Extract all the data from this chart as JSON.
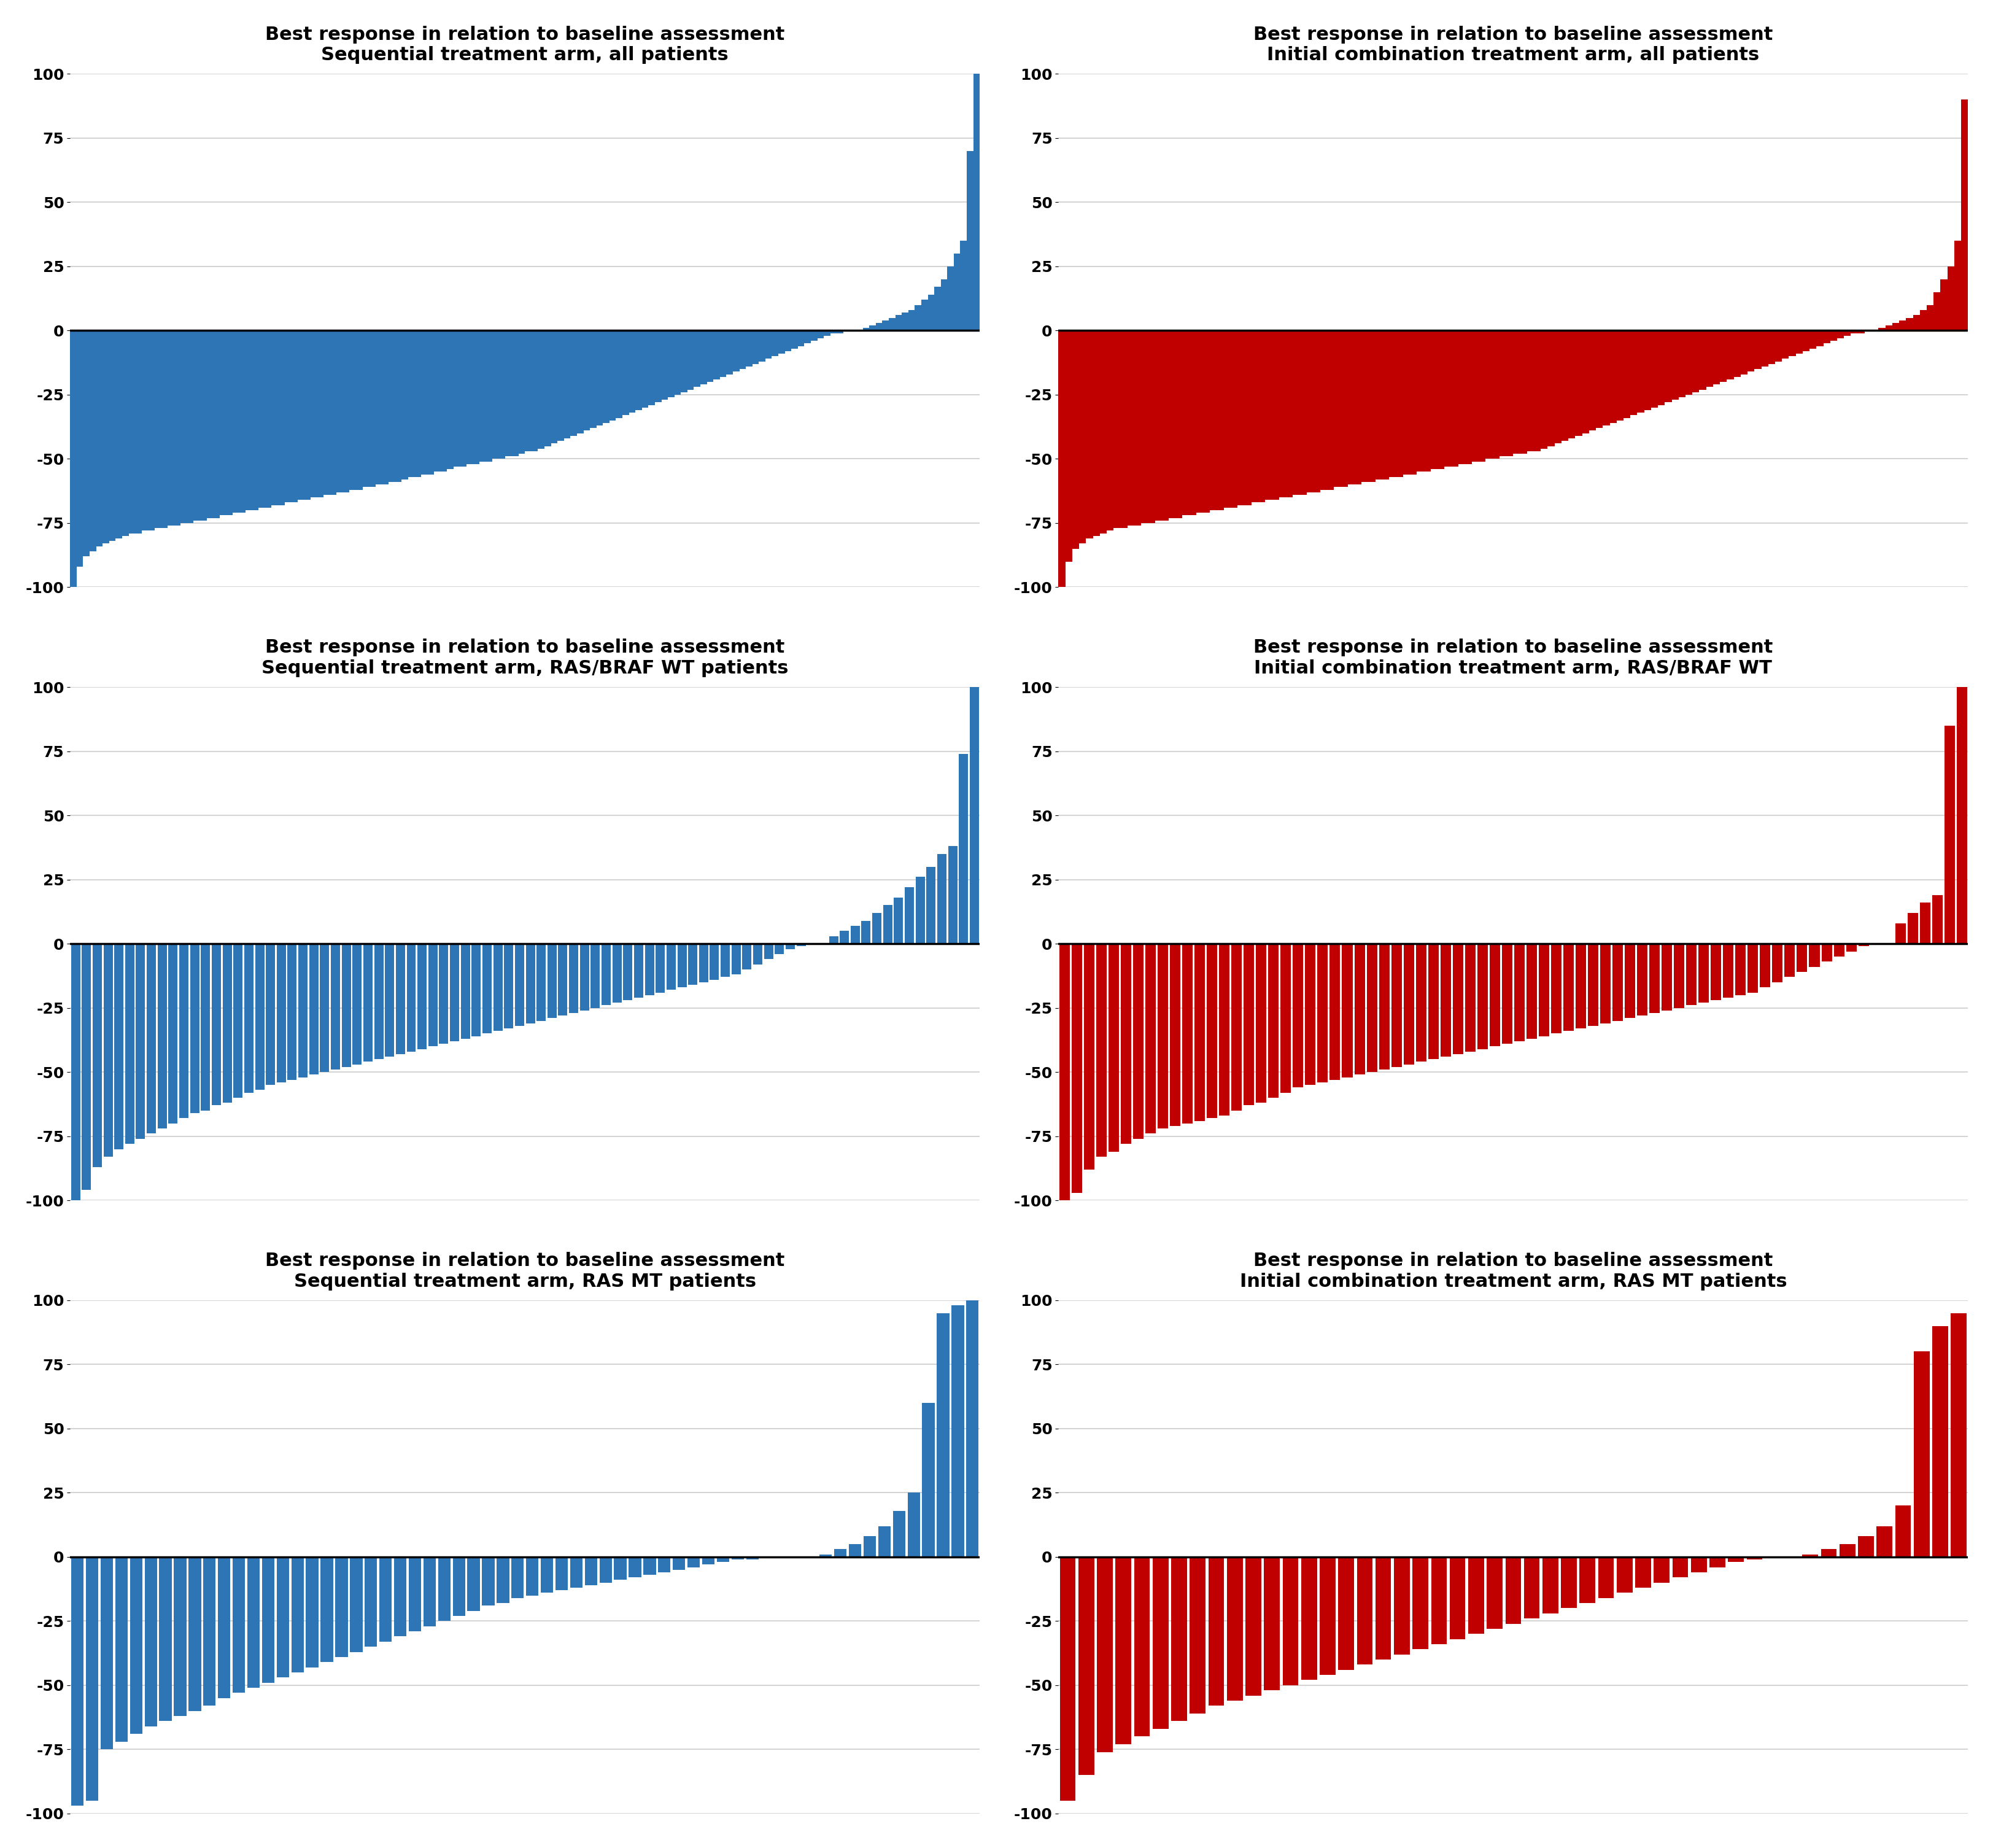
{
  "titles": [
    [
      "Best response in relation to baseline assessment",
      "Sequential treatment arm, all patients"
    ],
    [
      "Best response in relation to baseline assessment",
      "Initial combination treatment arm, all patients"
    ],
    [
      "Best response in relation to baseline assessment",
      "Sequential treatment arm, RAS/BRAF WT patients"
    ],
    [
      "Best response in relation to baseline assessment",
      "Initial combination treatment arm, RAS/BRAF WT"
    ],
    [
      "Best response in relation to baseline assessment",
      "Sequential treatment arm, RAS MT patients"
    ],
    [
      "Best response in relation to baseline assessment",
      "Initial combination treatment arm, RAS MT patients"
    ]
  ],
  "colors": [
    "#2E75B6",
    "#C00000",
    "#2E75B6",
    "#C00000",
    "#2E75B6",
    "#C00000"
  ],
  "ylim": [
    -100,
    100
  ],
  "yticks": [
    -100,
    -75,
    -50,
    -25,
    0,
    25,
    50,
    75,
    100
  ],
  "background_color": "#FFFFFF",
  "title_fontsize": 22,
  "tick_fontsize": 18,
  "grid_color": "#CCCCCC",
  "bar_width": [
    1.0,
    1.0,
    0.85,
    0.85,
    0.85,
    0.85
  ],
  "data": [
    [
      -100,
      -92,
      -88,
      -86,
      -84,
      -83,
      -82,
      -81,
      -80,
      -79,
      -79,
      -78,
      -78,
      -77,
      -77,
      -76,
      -76,
      -75,
      -75,
      -74,
      -74,
      -73,
      -73,
      -72,
      -72,
      -71,
      -71,
      -70,
      -70,
      -69,
      -69,
      -68,
      -68,
      -67,
      -67,
      -66,
      -66,
      -65,
      -65,
      -64,
      -64,
      -63,
      -63,
      -62,
      -62,
      -61,
      -61,
      -60,
      -60,
      -59,
      -59,
      -58,
      -57,
      -57,
      -56,
      -56,
      -55,
      -55,
      -54,
      -53,
      -53,
      -52,
      -52,
      -51,
      -51,
      -50,
      -50,
      -49,
      -49,
      -48,
      -47,
      -47,
      -46,
      -45,
      -44,
      -43,
      -42,
      -41,
      -40,
      -39,
      -38,
      -37,
      -36,
      -35,
      -34,
      -33,
      -32,
      -31,
      -30,
      -29,
      -28,
      -27,
      -26,
      -25,
      -24,
      -23,
      -22,
      -21,
      -20,
      -19,
      -18,
      -17,
      -16,
      -15,
      -14,
      -13,
      -12,
      -11,
      -10,
      -9,
      -8,
      -7,
      -6,
      -5,
      -4,
      -3,
      -2,
      -1,
      -1,
      0,
      0,
      0,
      1,
      2,
      3,
      4,
      5,
      6,
      7,
      8,
      10,
      12,
      14,
      17,
      20,
      25,
      30,
      35,
      70,
      100
    ],
    [
      -100,
      -90,
      -85,
      -83,
      -81,
      -80,
      -79,
      -78,
      -77,
      -77,
      -76,
      -76,
      -75,
      -75,
      -74,
      -74,
      -73,
      -73,
      -72,
      -72,
      -71,
      -71,
      -70,
      -70,
      -69,
      -69,
      -68,
      -68,
      -67,
      -67,
      -66,
      -66,
      -65,
      -65,
      -64,
      -64,
      -63,
      -63,
      -62,
      -62,
      -61,
      -61,
      -60,
      -60,
      -59,
      -59,
      -58,
      -58,
      -57,
      -57,
      -56,
      -56,
      -55,
      -55,
      -54,
      -54,
      -53,
      -53,
      -52,
      -52,
      -51,
      -51,
      -50,
      -50,
      -49,
      -49,
      -48,
      -48,
      -47,
      -47,
      -46,
      -45,
      -44,
      -43,
      -42,
      -41,
      -40,
      -39,
      -38,
      -37,
      -36,
      -35,
      -34,
      -33,
      -32,
      -31,
      -30,
      -29,
      -28,
      -27,
      -26,
      -25,
      -24,
      -23,
      -22,
      -21,
      -20,
      -19,
      -18,
      -17,
      -16,
      -15,
      -14,
      -13,
      -12,
      -11,
      -10,
      -9,
      -8,
      -7,
      -6,
      -5,
      -4,
      -3,
      -2,
      -1,
      -1,
      0,
      0,
      1,
      2,
      3,
      4,
      5,
      6,
      8,
      10,
      15,
      20,
      25,
      35,
      90
    ],
    [
      -100,
      -96,
      -87,
      -83,
      -80,
      -78,
      -76,
      -74,
      -72,
      -70,
      -68,
      -66,
      -65,
      -63,
      -62,
      -60,
      -58,
      -57,
      -55,
      -54,
      -53,
      -52,
      -51,
      -50,
      -49,
      -48,
      -47,
      -46,
      -45,
      -44,
      -43,
      -42,
      -41,
      -40,
      -39,
      -38,
      -37,
      -36,
      -35,
      -34,
      -33,
      -32,
      -31,
      -30,
      -29,
      -28,
      -27,
      -26,
      -25,
      -24,
      -23,
      -22,
      -21,
      -20,
      -19,
      -18,
      -17,
      -16,
      -15,
      -14,
      -13,
      -12,
      -10,
      -8,
      -6,
      -4,
      -2,
      -1,
      0,
      0,
      3,
      5,
      7,
      9,
      12,
      15,
      18,
      22,
      26,
      30,
      35,
      38,
      74,
      100
    ],
    [
      -100,
      -97,
      -88,
      -83,
      -81,
      -78,
      -76,
      -74,
      -72,
      -71,
      -70,
      -69,
      -68,
      -67,
      -65,
      -63,
      -62,
      -60,
      -58,
      -56,
      -55,
      -54,
      -53,
      -52,
      -51,
      -50,
      -49,
      -48,
      -47,
      -46,
      -45,
      -44,
      -43,
      -42,
      -41,
      -40,
      -39,
      -38,
      -37,
      -36,
      -35,
      -34,
      -33,
      -32,
      -31,
      -30,
      -29,
      -28,
      -27,
      -26,
      -25,
      -24,
      -23,
      -22,
      -21,
      -20,
      -19,
      -17,
      -15,
      -13,
      -11,
      -9,
      -7,
      -5,
      -3,
      -1,
      0,
      0,
      8,
      12,
      16,
      19,
      85,
      100
    ],
    [
      -97,
      -95,
      -75,
      -72,
      -69,
      -66,
      -64,
      -62,
      -60,
      -58,
      -55,
      -53,
      -51,
      -49,
      -47,
      -45,
      -43,
      -41,
      -39,
      -37,
      -35,
      -33,
      -31,
      -29,
      -27,
      -25,
      -23,
      -21,
      -19,
      -18,
      -16,
      -15,
      -14,
      -13,
      -12,
      -11,
      -10,
      -9,
      -8,
      -7,
      -6,
      -5,
      -4,
      -3,
      -2,
      -1,
      -1,
      0,
      0,
      0,
      0,
      1,
      3,
      5,
      8,
      12,
      18,
      25,
      60,
      95,
      98,
      100
    ],
    [
      -95,
      -85,
      -76,
      -73,
      -70,
      -67,
      -64,
      -61,
      -58,
      -56,
      -54,
      -52,
      -50,
      -48,
      -46,
      -44,
      -42,
      -40,
      -38,
      -36,
      -34,
      -32,
      -30,
      -28,
      -26,
      -24,
      -22,
      -20,
      -18,
      -16,
      -14,
      -12,
      -10,
      -8,
      -6,
      -4,
      -2,
      -1,
      0,
      0,
      1,
      3,
      5,
      8,
      12,
      20,
      80,
      90,
      95
    ]
  ]
}
